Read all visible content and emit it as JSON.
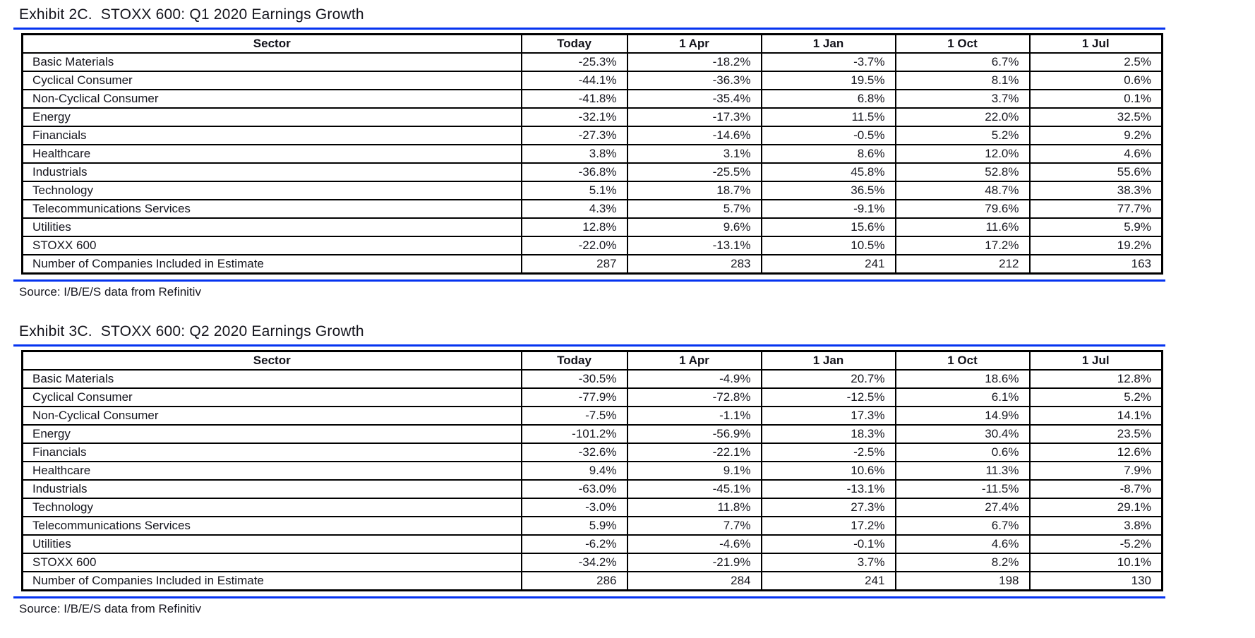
{
  "colors": {
    "rule_blue": "#0533f0",
    "table_border": "#000000",
    "text": "#14141c"
  },
  "exhibits": [
    {
      "title": "Exhibit 2C.  STOXX 600: Q1 2020 Earnings Growth",
      "source": "Source: I/B/E/S data from Refinitiv",
      "columns": [
        "Sector",
        "Today",
        "1 Apr",
        "1 Jan",
        "1 Oct",
        "1 Jul"
      ],
      "rows": [
        {
          "sector": "Basic Materials",
          "values": [
            "-25.3%",
            "-18.2%",
            "-3.7%",
            "6.7%",
            "2.5%"
          ]
        },
        {
          "sector": "Cyclical Consumer",
          "values": [
            "-44.1%",
            "-36.3%",
            "19.5%",
            "8.1%",
            "0.6%"
          ]
        },
        {
          "sector": "Non-Cyclical Consumer",
          "values": [
            "-41.8%",
            "-35.4%",
            "6.8%",
            "3.7%",
            "0.1%"
          ]
        },
        {
          "sector": "Energy",
          "values": [
            "-32.1%",
            "-17.3%",
            "11.5%",
            "22.0%",
            "32.5%"
          ]
        },
        {
          "sector": "Financials",
          "values": [
            "-27.3%",
            "-14.6%",
            "-0.5%",
            "5.2%",
            "9.2%"
          ]
        },
        {
          "sector": "Healthcare",
          "values": [
            "3.8%",
            "3.1%",
            "8.6%",
            "12.0%",
            "4.6%"
          ]
        },
        {
          "sector": "Industrials",
          "values": [
            "-36.8%",
            "-25.5%",
            "45.8%",
            "52.8%",
            "55.6%"
          ]
        },
        {
          "sector": "Technology",
          "values": [
            "5.1%",
            "18.7%",
            "36.5%",
            "48.7%",
            "38.3%"
          ]
        },
        {
          "sector": "Telecommunications Services",
          "values": [
            "4.3%",
            "5.7%",
            "-9.1%",
            "79.6%",
            "77.7%"
          ]
        },
        {
          "sector": "Utilities",
          "values": [
            "12.8%",
            "9.6%",
            "15.6%",
            "11.6%",
            "5.9%"
          ]
        },
        {
          "sector": "STOXX 600",
          "values": [
            "-22.0%",
            "-13.1%",
            "10.5%",
            "17.2%",
            "19.2%"
          ]
        },
        {
          "sector": "Number of Companies Included in Estimate",
          "values": [
            "287",
            "283",
            "241",
            "212",
            "163"
          ]
        }
      ]
    },
    {
      "title": "Exhibit 3C.  STOXX 600: Q2 2020 Earnings Growth",
      "source": "Source: I/B/E/S data from Refinitiv",
      "columns": [
        "Sector",
        "Today",
        "1 Apr",
        "1 Jan",
        "1 Oct",
        "1 Jul"
      ],
      "rows": [
        {
          "sector": "Basic Materials",
          "values": [
            "-30.5%",
            "-4.9%",
            "20.7%",
            "18.6%",
            "12.8%"
          ]
        },
        {
          "sector": "Cyclical Consumer",
          "values": [
            "-77.9%",
            "-72.8%",
            "-12.5%",
            "6.1%",
            "5.2%"
          ]
        },
        {
          "sector": "Non-Cyclical Consumer",
          "values": [
            "-7.5%",
            "-1.1%",
            "17.3%",
            "14.9%",
            "14.1%"
          ]
        },
        {
          "sector": "Energy",
          "values": [
            "-101.2%",
            "-56.9%",
            "18.3%",
            "30.4%",
            "23.5%"
          ]
        },
        {
          "sector": "Financials",
          "values": [
            "-32.6%",
            "-22.1%",
            "-2.5%",
            "0.6%",
            "12.6%"
          ]
        },
        {
          "sector": "Healthcare",
          "values": [
            "9.4%",
            "9.1%",
            "10.6%",
            "11.3%",
            "7.9%"
          ]
        },
        {
          "sector": "Industrials",
          "values": [
            "-63.0%",
            "-45.1%",
            "-13.1%",
            "-11.5%",
            "-8.7%"
          ]
        },
        {
          "sector": "Technology",
          "values": [
            "-3.0%",
            "11.8%",
            "27.3%",
            "27.4%",
            "29.1%"
          ]
        },
        {
          "sector": "Telecommunications Services",
          "values": [
            "5.9%",
            "7.7%",
            "17.2%",
            "6.7%",
            "3.8%"
          ]
        },
        {
          "sector": "Utilities",
          "values": [
            "-6.2%",
            "-4.6%",
            "-0.1%",
            "4.6%",
            "-5.2%"
          ]
        },
        {
          "sector": "STOXX 600",
          "values": [
            "-34.2%",
            "-21.9%",
            "3.7%",
            "8.2%",
            "10.1%"
          ]
        },
        {
          "sector": "Number of Companies Included in Estimate",
          "values": [
            "286",
            "284",
            "241",
            "198",
            "130"
          ]
        }
      ]
    }
  ]
}
